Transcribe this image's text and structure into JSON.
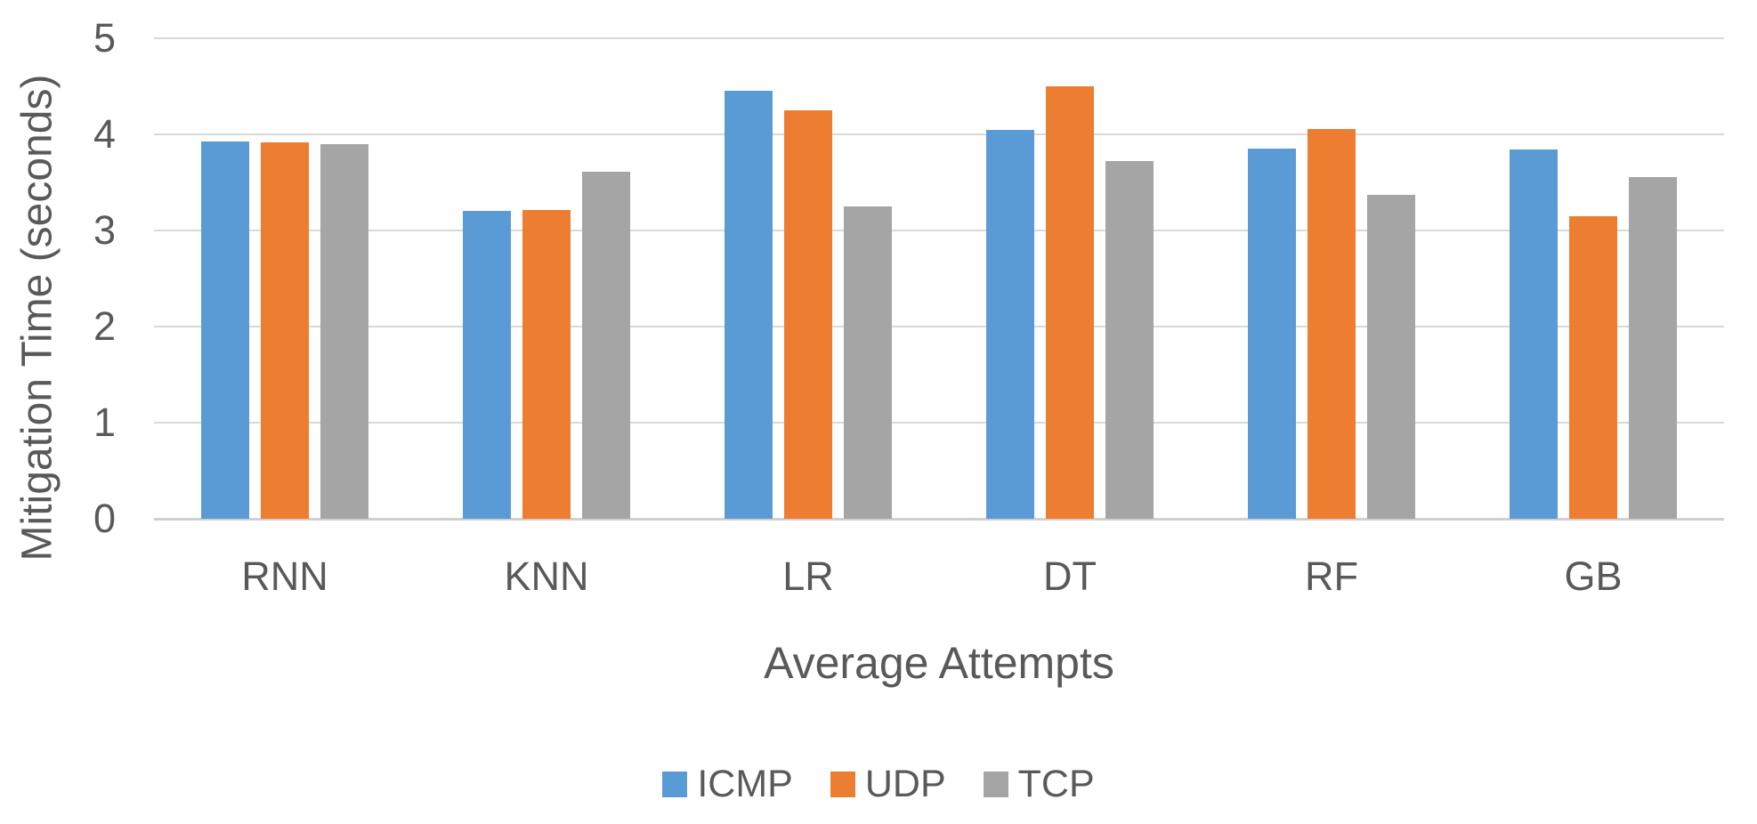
{
  "figure": {
    "background": "#ffffff",
    "text_color": "#595959",
    "gridline_color": "#d9d9d9",
    "axis_line_color": "#d0d0d0"
  },
  "chart_data": {
    "type": "bar",
    "title": "",
    "categories": [
      "RNN",
      "KNN",
      "LR",
      "DT",
      "RF",
      "GB"
    ],
    "series": [
      {
        "name": "ICMP",
        "color": "#5b9bd5",
        "values": [
          3.93,
          3.2,
          4.45,
          4.05,
          3.85,
          3.84
        ]
      },
      {
        "name": "UDP",
        "color": "#ed7d31",
        "values": [
          3.92,
          3.21,
          4.25,
          4.5,
          4.06,
          3.15
        ]
      },
      {
        "name": "TCP",
        "color": "#a5a5a5",
        "values": [
          3.9,
          3.61,
          3.25,
          3.72,
          3.37,
          3.56
        ]
      }
    ],
    "xlabel": "Average Attempts",
    "ylabel": "Mitigation Time (seconds)",
    "ylim": [
      0,
      5
    ],
    "yticks": [
      0,
      1,
      2,
      3,
      4,
      5
    ],
    "grid": true,
    "legend_position": "bottom",
    "legend": [
      "ICMP",
      "UDP",
      "TCP"
    ]
  }
}
